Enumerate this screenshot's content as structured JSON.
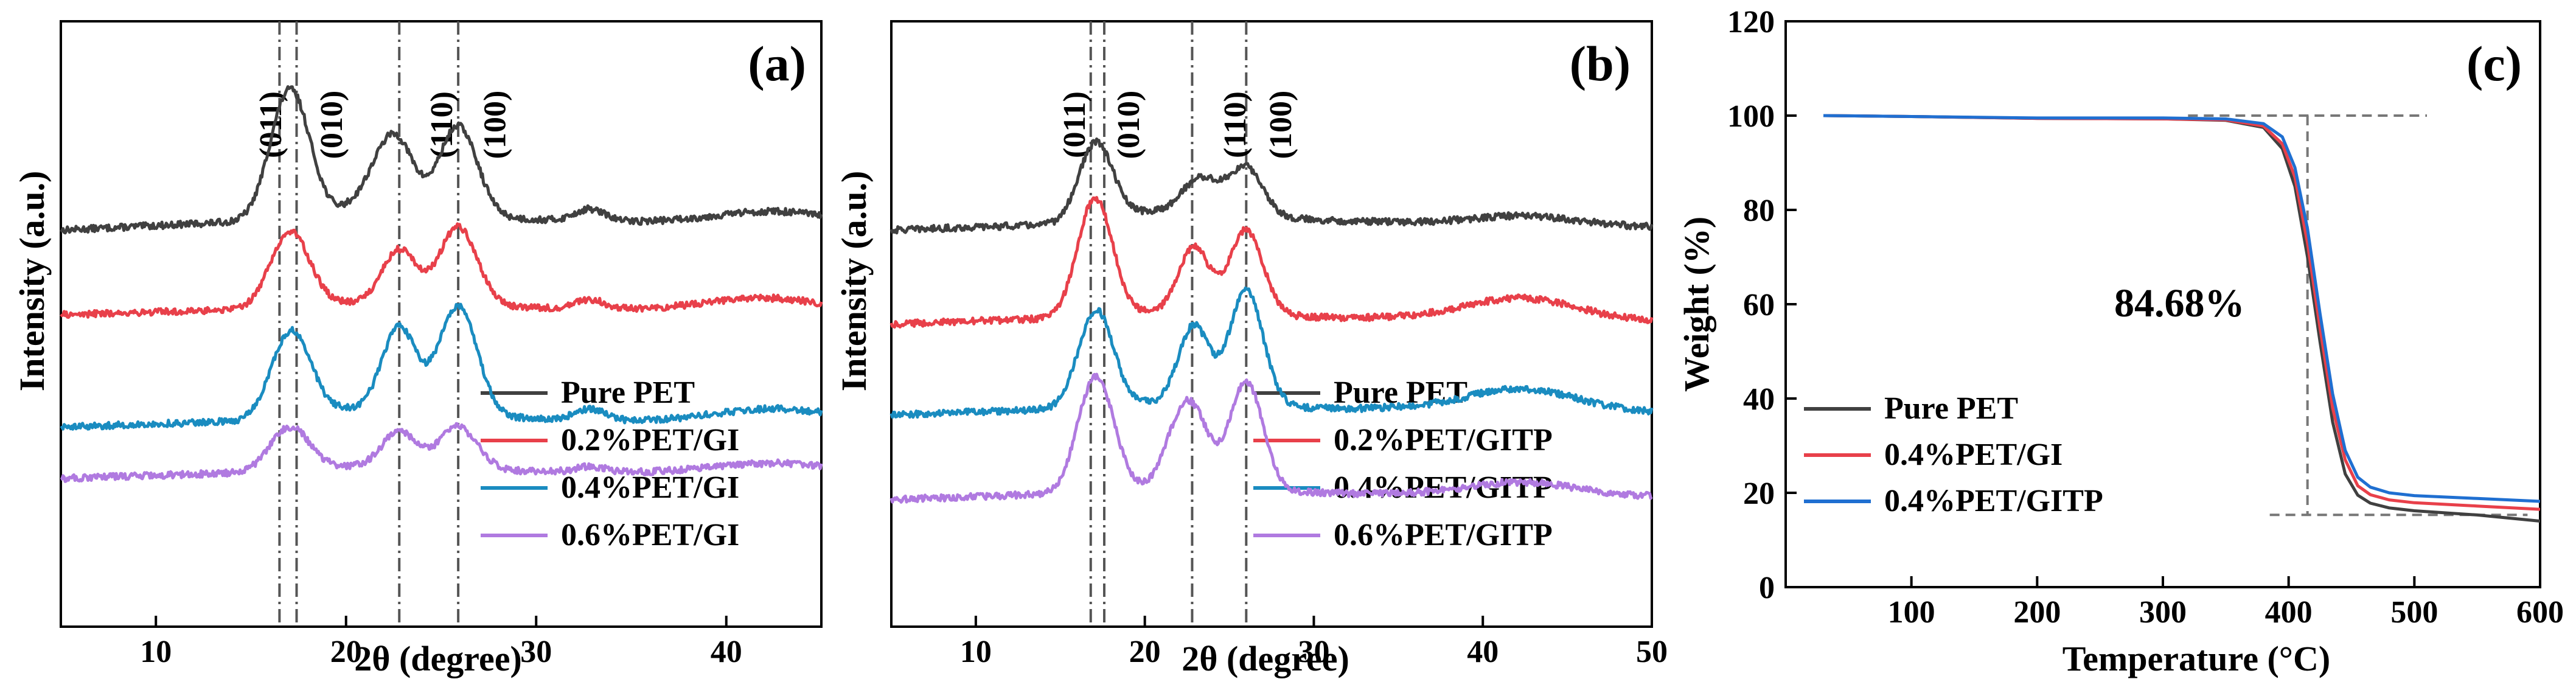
{
  "chart_data": [
    {
      "panel_label": "(a)",
      "type": "line",
      "xlabel": "2θ (degree)",
      "ylabel": "Intensity (a.u.)",
      "xlim": [
        5,
        45
      ],
      "xticks": [
        10,
        20,
        30,
        40
      ],
      "ylim": [
        0,
        1
      ],
      "yticks": [],
      "peak_lines": [
        16.5,
        17.4,
        22.8,
        25.9
      ],
      "peak_labels": [
        {
          "label": "(011)",
          "x": 16.0
        },
        {
          "label": "(010)",
          "x": 19.2
        },
        {
          "label": "(110)",
          "x": 25.0
        },
        {
          "label": "(100)",
          "x": 27.8
        }
      ],
      "legend_position": "bottom-right",
      "series": [
        {
          "name": "Pure PET",
          "color": "#404040",
          "offset": 0.655,
          "amp": 1.0,
          "baseline_x": [
            5,
            15,
            20,
            32,
            40,
            45
          ],
          "baseline_y": [
            0,
            0.015,
            0.03,
            0.015,
            0.012,
            0.01
          ],
          "peaks": [
            [
              16.6,
              0.12,
              0.9
            ],
            [
              17.5,
              0.12,
              0.9
            ],
            [
              21.8,
              0.06,
              1.0
            ],
            [
              22.8,
              0.09,
              0.9
            ],
            [
              25.9,
              0.15,
              1.0
            ],
            [
              32.8,
              0.02,
              0.8
            ],
            [
              42.5,
              0.02,
              3.0
            ]
          ]
        },
        {
          "name": "0.2%PET/GI",
          "color": "#e8404a",
          "offset": 0.515,
          "amp": 1.0,
          "baseline_x": [
            5,
            15,
            20,
            32,
            40,
            45
          ],
          "baseline_y": [
            0,
            0.01,
            0.02,
            0.01,
            0.01,
            0.005
          ],
          "peaks": [
            [
              16.6,
              0.07,
              0.9
            ],
            [
              17.5,
              0.07,
              0.9
            ],
            [
              22.8,
              0.09,
              0.9
            ],
            [
              25.9,
              0.13,
              1.0
            ],
            [
              32.8,
              0.015,
              0.8
            ],
            [
              42.5,
              0.02,
              3.0
            ]
          ]
        },
        {
          "name": "0.4%PET/GI",
          "color": "#1a8cc0",
          "offset": 0.33,
          "amp": 1.0,
          "baseline_x": [
            5,
            15,
            20,
            32,
            40,
            45
          ],
          "baseline_y": [
            0,
            0.01,
            0.03,
            0.01,
            0.01,
            0.01
          ],
          "peaks": [
            [
              16.6,
              0.07,
              0.9
            ],
            [
              17.5,
              0.09,
              0.9
            ],
            [
              22.8,
              0.14,
              0.9
            ],
            [
              25.9,
              0.18,
              1.0
            ],
            [
              32.8,
              0.02,
              0.8
            ],
            [
              42.5,
              0.02,
              3.0
            ]
          ]
        },
        {
          "name": "0.6%PET/GI",
          "color": "#b07ae0",
          "offset": 0.245,
          "amp": 1.0,
          "baseline_x": [
            5,
            15,
            20,
            32,
            40,
            45
          ],
          "baseline_y": [
            0,
            0.01,
            0.02,
            0.01,
            0.01,
            0.01
          ],
          "peaks": [
            [
              16.6,
              0.04,
              0.9
            ],
            [
              17.5,
              0.04,
              0.9
            ],
            [
              22.8,
              0.06,
              0.9
            ],
            [
              25.9,
              0.07,
              1.0
            ],
            [
              32.8,
              0.01,
              0.8
            ],
            [
              42.5,
              0.015,
              3.0
            ]
          ]
        }
      ]
    },
    {
      "panel_label": "(b)",
      "type": "line",
      "xlabel": "2θ (degree)",
      "ylabel": "Intensity (a.u.)",
      "xlim": [
        5,
        50
      ],
      "xticks": [
        10,
        20,
        30,
        40,
        50
      ],
      "ylim": [
        0,
        1
      ],
      "yticks": [],
      "peak_lines": [
        16.8,
        17.6,
        22.8,
        26.0
      ],
      "peak_labels": [
        {
          "label": "(011)",
          "x": 15.8
        },
        {
          "label": "(010)",
          "x": 19.0
        },
        {
          "label": "(110)",
          "x": 25.3
        },
        {
          "label": "(100)",
          "x": 28.0
        }
      ],
      "legend_position": "bottom-right",
      "series": [
        {
          "name": "Pure PET",
          "color": "#404040",
          "offset": 0.655,
          "amp": 1.0,
          "baseline_x": [
            5,
            15,
            20,
            32,
            40,
            50
          ],
          "baseline_y": [
            0,
            0.01,
            0.03,
            0.015,
            0.01,
            0.005
          ],
          "peaks": [
            [
              16.7,
              0.07,
              0.9
            ],
            [
              17.5,
              0.07,
              0.9
            ],
            [
              23.3,
              0.06,
              1.1
            ],
            [
              26.0,
              0.08,
              1.0
            ],
            [
              42.5,
              0.015,
              3.0
            ]
          ]
        },
        {
          "name": "0.2%PET/GITP",
          "color": "#e8404a",
          "offset": 0.5,
          "amp": 1.0,
          "baseline_x": [
            5,
            15,
            20,
            32,
            40,
            50
          ],
          "baseline_y": [
            0,
            0.01,
            0.02,
            0.01,
            0.015,
            0.005
          ],
          "peaks": [
            [
              16.6,
              0.11,
              0.9
            ],
            [
              17.5,
              0.11,
              0.9
            ],
            [
              22.9,
              0.11,
              0.9
            ],
            [
              26.0,
              0.14,
              1.0
            ],
            [
              42.5,
              0.03,
              3.0
            ]
          ]
        },
        {
          "name": "0.4%PET/GITP",
          "color": "#1a8cc0",
          "offset": 0.35,
          "amp": 1.0,
          "baseline_x": [
            5,
            15,
            20,
            32,
            40,
            50
          ],
          "baseline_y": [
            0,
            0.01,
            0.02,
            0.01,
            0.015,
            0.005
          ],
          "peaks": [
            [
              16.6,
              0.08,
              0.9
            ],
            [
              17.5,
              0.1,
              0.9
            ],
            [
              22.9,
              0.13,
              0.9
            ],
            [
              26.0,
              0.19,
              1.0
            ],
            [
              42.5,
              0.03,
              3.0
            ]
          ]
        },
        {
          "name": "0.6%PET/GITP",
          "color": "#b07ae0",
          "offset": 0.21,
          "amp": 1.0,
          "baseline_x": [
            5,
            15,
            20,
            32,
            40,
            50
          ],
          "baseline_y": [
            0,
            0.01,
            0.02,
            0.01,
            0.01,
            0.005
          ],
          "peaks": [
            [
              16.6,
              0.11,
              0.9
            ],
            [
              17.6,
              0.11,
              0.9
            ],
            [
              21.7,
              0.06,
              0.8
            ],
            [
              22.9,
              0.12,
              0.9
            ],
            [
              26.0,
              0.18,
              1.0
            ],
            [
              42.5,
              0.02,
              3.0
            ]
          ]
        }
      ]
    },
    {
      "panel_label": "(c)",
      "type": "line",
      "xlabel": "Temperature (°C)",
      "ylabel": "Weight (%)",
      "xlim": [
        0,
        600
      ],
      "xticks": [
        100,
        200,
        300,
        400,
        500,
        600
      ],
      "ylim": [
        0,
        120
      ],
      "yticks": [
        0,
        20,
        40,
        60,
        80,
        100,
        120
      ],
      "annotation": "84.68%",
      "reference_lines": {
        "upper_y": 100,
        "lower_y": 15.32,
        "x": 415,
        "upper_x_range": [
          320,
          510
        ],
        "lower_x_range": [
          385,
          590
        ]
      },
      "legend_position": "bottom-left",
      "series": [
        {
          "name": "Pure PET",
          "color": "#404040",
          "x": [
            30,
            100,
            200,
            300,
            350,
            380,
            395,
            405,
            415,
            425,
            435,
            445,
            455,
            465,
            480,
            500,
            550,
            600
          ],
          "y": [
            100,
            99.8,
            99.4,
            99.3,
            99.0,
            97.5,
            93,
            85,
            70,
            52,
            35,
            24,
            19.5,
            17.8,
            16.8,
            16.2,
            15.3,
            14.0
          ]
        },
        {
          "name": "0.4%PET/GI",
          "color": "#e8404a",
          "x": [
            30,
            100,
            200,
            300,
            350,
            380,
            395,
            405,
            415,
            425,
            435,
            445,
            455,
            465,
            480,
            500,
            550,
            600
          ],
          "y": [
            100,
            99.8,
            99.4,
            99.3,
            99.1,
            97.8,
            94,
            87,
            73,
            55,
            38,
            27,
            21.5,
            19.6,
            18.5,
            17.9,
            17.2,
            16.5
          ]
        },
        {
          "name": "0.4%PET/GITP",
          "color": "#1f6fd1",
          "x": [
            30,
            100,
            200,
            300,
            350,
            380,
            395,
            405,
            415,
            425,
            435,
            445,
            455,
            465,
            480,
            500,
            550,
            600
          ],
          "y": [
            100,
            99.8,
            99.5,
            99.5,
            99.3,
            98.3,
            95.5,
            89,
            76,
            58,
            41,
            29,
            23.3,
            21.2,
            20.0,
            19.4,
            18.8,
            18.2
          ]
        }
      ]
    }
  ]
}
